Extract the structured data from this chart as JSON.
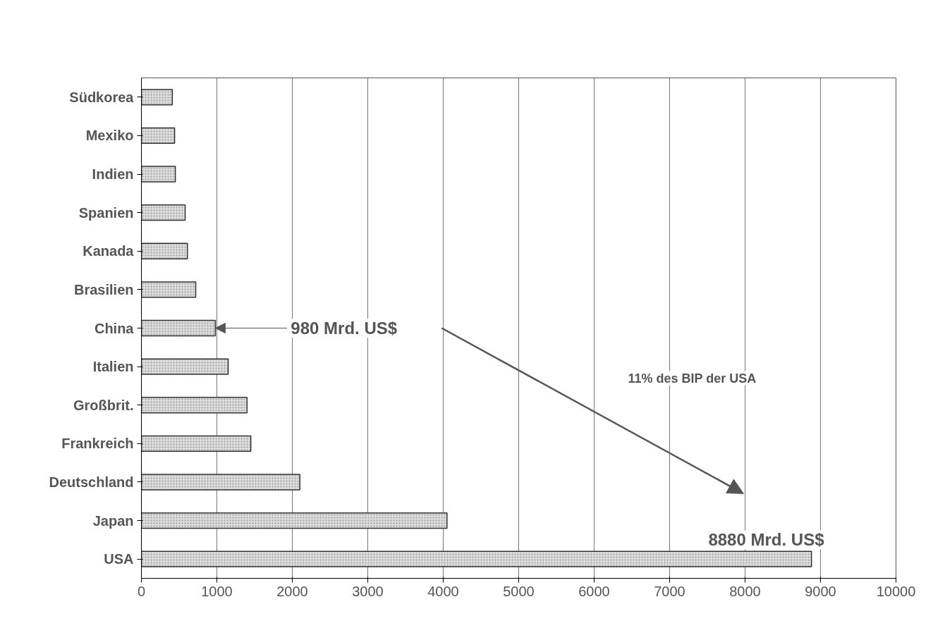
{
  "chart_data": {
    "type": "bar",
    "orientation": "horizontal",
    "categories": [
      "Südkorea",
      "Mexiko",
      "Indien",
      "Spanien",
      "Kanada",
      "Brasilien",
      "China",
      "Italien",
      "Großbrit.",
      "Frankreich",
      "Deutschland",
      "Japan",
      "USA"
    ],
    "values": [
      410,
      440,
      450,
      580,
      610,
      720,
      980,
      1150,
      1400,
      1450,
      2100,
      4050,
      8880
    ],
    "color": "#dcdcdc",
    "xlim": [
      0,
      10000
    ],
    "xticks": [
      0,
      1000,
      2000,
      3000,
      4000,
      5000,
      6000,
      7000,
      8000,
      9000,
      10000
    ],
    "grid": "x",
    "annotations": [
      {
        "text": "980 Mrd. US$",
        "x": 980,
        "y": "China"
      },
      {
        "text": "8880 Mrd. US$",
        "x": 8880,
        "y": "USA"
      },
      "11% des BIP der USA"
    ]
  }
}
